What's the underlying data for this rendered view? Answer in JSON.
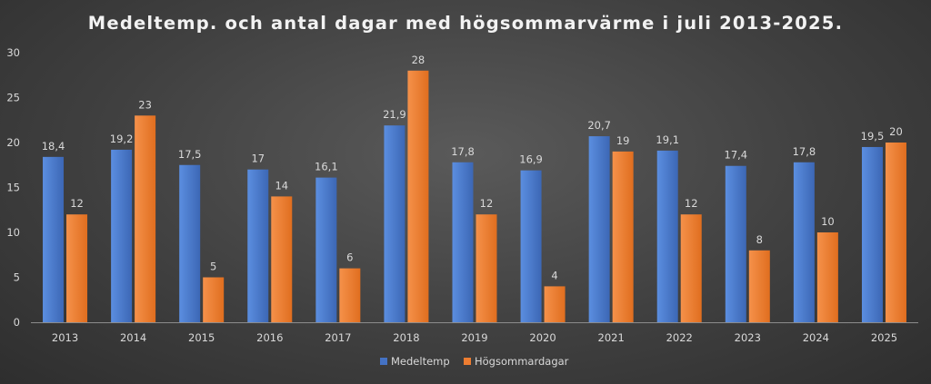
{
  "chart_data": {
    "type": "bar",
    "title": "Medeltemp. och antal dagar med högsommarvärme i juli 2013-2025.",
    "xlabel": "",
    "ylabel": "",
    "categories": [
      "2013",
      "2014",
      "2015",
      "2016",
      "2017",
      "2018",
      "2019",
      "2020",
      "2021",
      "2022",
      "2023",
      "2024",
      "2025"
    ],
    "series": [
      {
        "name": "Medeltemp",
        "color": "#4472c4",
        "values": [
          18.4,
          19.2,
          17.5,
          17,
          16.1,
          21.9,
          17.8,
          16.9,
          20.7,
          19.1,
          17.4,
          17.8,
          19.5
        ],
        "labels": [
          "18,4",
          "19,2",
          "17,5",
          "17",
          "16,1",
          "21,9",
          "17,8",
          "16,9",
          "20,7",
          "19,1",
          "17,4",
          "17,8",
          "19,5"
        ]
      },
      {
        "name": "Högsommardagar",
        "color": "#ed7d31",
        "values": [
          12,
          23,
          5,
          14,
          6,
          28,
          12,
          4,
          19,
          12,
          8,
          10,
          20
        ],
        "labels": [
          "12",
          "23",
          "5",
          "14",
          "6",
          "28",
          "12",
          "4",
          "19",
          "12",
          "8",
          "10",
          "20"
        ]
      }
    ],
    "ylim": [
      0,
      30
    ],
    "yticks": [
      0,
      5,
      10,
      15,
      20,
      25,
      30
    ],
    "grid": false,
    "legend_position": "bottom"
  }
}
